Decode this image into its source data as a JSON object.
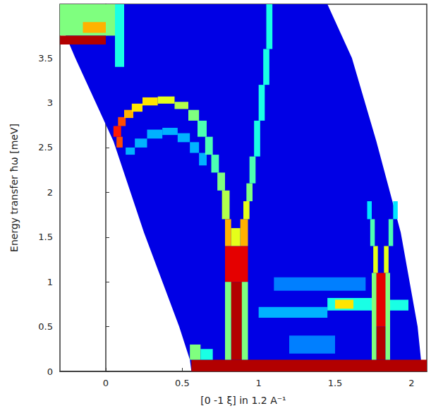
{
  "chart_data": {
    "type": "heatmap",
    "xlabel": "[0 -1 ξ] in 1.2 A⁻¹",
    "ylabel": "Energy transfer ħω [meV]",
    "xlim": [
      -0.3,
      2.1
    ],
    "ylim": [
      0,
      4.1
    ],
    "xticks": [
      0,
      0.5,
      1,
      1.5,
      2
    ],
    "yticks": [
      0,
      0.5,
      1,
      1.5,
      2,
      2.5,
      3,
      3.5
    ],
    "grid": false,
    "color_range": [
      0,
      10
    ],
    "coverage": {
      "value": 1,
      "polygon": [
        [
          -0.3,
          4.1
        ],
        [
          1.45,
          4.1
        ],
        [
          1.61,
          3.5
        ],
        [
          1.77,
          2.57
        ],
        [
          1.93,
          1.55
        ],
        [
          2.04,
          0.5
        ],
        [
          2.07,
          0.0
        ],
        [
          0.56,
          0.0
        ],
        [
          0.55,
          0.13
        ],
        [
          0.48,
          0.5
        ],
        [
          0.25,
          1.55
        ],
        [
          0.05,
          2.57
        ],
        [
          -0.2,
          3.5
        ],
        [
          -0.3,
          3.9
        ]
      ]
    },
    "cells": [
      [
        0.56,
        2.1,
        0.0,
        0.13,
        9.5
      ],
      [
        -0.3,
        0.1,
        3.75,
        4.1,
        5
      ],
      [
        -0.15,
        0.0,
        3.78,
        3.9,
        7
      ],
      [
        -0.3,
        0.0,
        3.65,
        3.75,
        9.5
      ],
      [
        0.06,
        0.12,
        3.4,
        4.1,
        4
      ],
      [
        0.13,
        0.19,
        2.42,
        2.5,
        3
      ],
      [
        0.19,
        0.27,
        2.5,
        2.6,
        3
      ],
      [
        0.27,
        0.37,
        2.6,
        2.7,
        3
      ],
      [
        0.37,
        0.47,
        2.64,
        2.72,
        3
      ],
      [
        0.47,
        0.55,
        2.56,
        2.66,
        3
      ],
      [
        0.55,
        0.61,
        2.44,
        2.56,
        3
      ],
      [
        0.61,
        0.66,
        2.3,
        2.44,
        3
      ],
      [
        0.07,
        0.11,
        2.5,
        2.62,
        8
      ],
      [
        0.05,
        0.1,
        2.62,
        2.74,
        8.5
      ],
      [
        0.08,
        0.13,
        2.74,
        2.84,
        8
      ],
      [
        0.12,
        0.18,
        2.83,
        2.92,
        7
      ],
      [
        0.17,
        0.24,
        2.9,
        2.99,
        6.5
      ],
      [
        0.24,
        0.34,
        2.97,
        3.06,
        6.5
      ],
      [
        0.34,
        0.45,
        2.99,
        3.07,
        6
      ],
      [
        0.45,
        0.54,
        2.93,
        3.01,
        5.5
      ],
      [
        0.54,
        0.61,
        2.8,
        2.92,
        5
      ],
      [
        0.6,
        0.66,
        2.62,
        2.8,
        4.5
      ],
      [
        0.65,
        0.7,
        2.42,
        2.62,
        4.5
      ],
      [
        0.69,
        0.74,
        2.22,
        2.42,
        4.5
      ],
      [
        0.73,
        0.78,
        2.02,
        2.22,
        5
      ],
      [
        0.76,
        0.81,
        1.7,
        2.02,
        5.5
      ],
      [
        0.82,
        0.89,
        0.13,
        0.6,
        9.5
      ],
      [
        0.8,
        0.91,
        0.6,
        1.0,
        9.5
      ],
      [
        0.78,
        0.93,
        1.0,
        1.4,
        9
      ],
      [
        0.78,
        0.82,
        1.4,
        1.7,
        7
      ],
      [
        0.88,
        0.93,
        1.4,
        1.7,
        7
      ],
      [
        0.82,
        0.88,
        1.4,
        1.6,
        6
      ],
      [
        0.78,
        0.82,
        0.13,
        1.0,
        5
      ],
      [
        0.89,
        0.93,
        0.13,
        1.0,
        5
      ],
      [
        0.9,
        0.94,
        1.7,
        1.9,
        6
      ],
      [
        0.92,
        0.96,
        1.9,
        2.1,
        5
      ],
      [
        0.94,
        0.98,
        2.1,
        2.4,
        4.5
      ],
      [
        0.97,
        1.01,
        2.4,
        2.8,
        4
      ],
      [
        1.0,
        1.04,
        2.8,
        3.2,
        4
      ],
      [
        1.03,
        1.07,
        3.2,
        3.6,
        4
      ],
      [
        1.05,
        1.09,
        3.6,
        4.1,
        4
      ],
      [
        0.55,
        0.62,
        0.13,
        0.3,
        5
      ],
      [
        0.62,
        0.7,
        0.13,
        0.25,
        4
      ],
      [
        1.77,
        1.83,
        0.13,
        0.5,
        9.5
      ],
      [
        1.76,
        1.84,
        0.5,
        1.1,
        9
      ],
      [
        1.74,
        1.77,
        0.13,
        1.1,
        5
      ],
      [
        1.83,
        1.86,
        0.13,
        1.1,
        5
      ],
      [
        1.75,
        1.78,
        1.1,
        1.4,
        6
      ],
      [
        1.82,
        1.85,
        1.1,
        1.4,
        6
      ],
      [
        1.73,
        1.76,
        1.4,
        1.7,
        4.5
      ],
      [
        1.85,
        1.88,
        1.4,
        1.7,
        4.5
      ],
      [
        1.71,
        1.74,
        1.7,
        1.9,
        3.5
      ],
      [
        1.88,
        1.91,
        1.7,
        1.9,
        3.5
      ],
      [
        1.0,
        1.45,
        0.6,
        0.72,
        3
      ],
      [
        1.1,
        1.7,
        0.9,
        1.05,
        2.5
      ],
      [
        1.2,
        1.5,
        0.2,
        0.4,
        2.5
      ],
      [
        1.45,
        1.74,
        0.68,
        0.82,
        4
      ],
      [
        1.5,
        1.62,
        0.7,
        0.8,
        6.5
      ],
      [
        1.86,
        1.98,
        0.68,
        0.8,
        4
      ]
    ]
  }
}
